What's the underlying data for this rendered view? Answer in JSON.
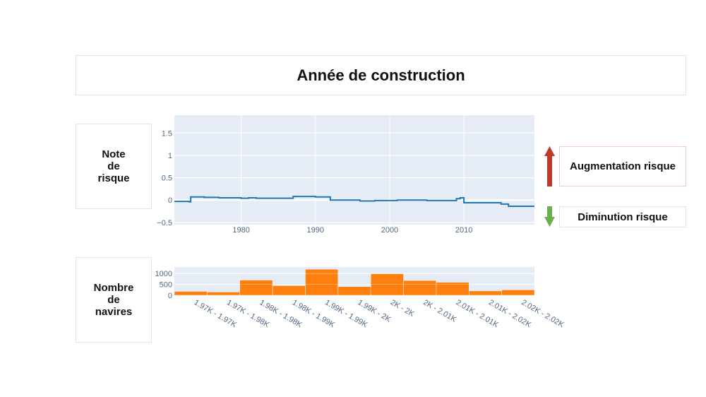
{
  "title": "Année de construction",
  "risk_label": "Note\nde\nrisque",
  "count_label": "Nombre\nde\nnavires",
  "legend": {
    "increase": "Augmentation risque",
    "decrease": "Diminution risque",
    "increase_color": "#c0392b",
    "decrease_color": "#6ab04c"
  },
  "chart_data": [
    {
      "type": "line",
      "line_shape": "step",
      "color": "#1f77b4",
      "x": [
        1971,
        1973,
        1973.2,
        1975,
        1977,
        1980,
        1981,
        1982,
        1987,
        1988,
        1990,
        1992,
        1996,
        1998,
        2001,
        2005,
        2009,
        2009.5,
        2010,
        2011,
        2015,
        2016,
        2019.5
      ],
      "y": [
        -0.03,
        -0.04,
        0.07,
        0.06,
        0.05,
        0.04,
        0.05,
        0.04,
        0.08,
        0.08,
        0.07,
        0.0,
        -0.02,
        -0.01,
        0.0,
        -0.01,
        0.03,
        0.05,
        -0.06,
        -0.06,
        -0.09,
        -0.14,
        -0.14
      ],
      "xlim": [
        1971,
        2019.5
      ],
      "ylim": [
        -0.55,
        1.9
      ],
      "xticks": [
        1980,
        1990,
        2000,
        2010
      ],
      "yticks": [
        -0.5,
        0,
        0.5,
        1,
        1.5
      ],
      "ytick_labels": [
        "−0.5",
        "0",
        "0.5",
        "1",
        "1.5"
      ],
      "grid": true
    },
    {
      "type": "bar",
      "color": "#ff7f0e",
      "categories": [
        "1.97K - 1.97K",
        "1.97K - 1.98K",
        "1.98K - 1.98K",
        "1.98K - 1.99K",
        "1.99K - 1.99K",
        "1.99K - 2K",
        "2K - 2K",
        "2K - 2.01K",
        "2.01K - 2.01K",
        "2.01K - 2.02K",
        "2.02K - 2.02K"
      ],
      "values": [
        180,
        150,
        700,
        440,
        1200,
        400,
        990,
        680,
        600,
        200,
        250
      ],
      "ylim": [
        0,
        1300
      ],
      "yticks": [
        0,
        500,
        1000
      ],
      "grid": true
    }
  ]
}
